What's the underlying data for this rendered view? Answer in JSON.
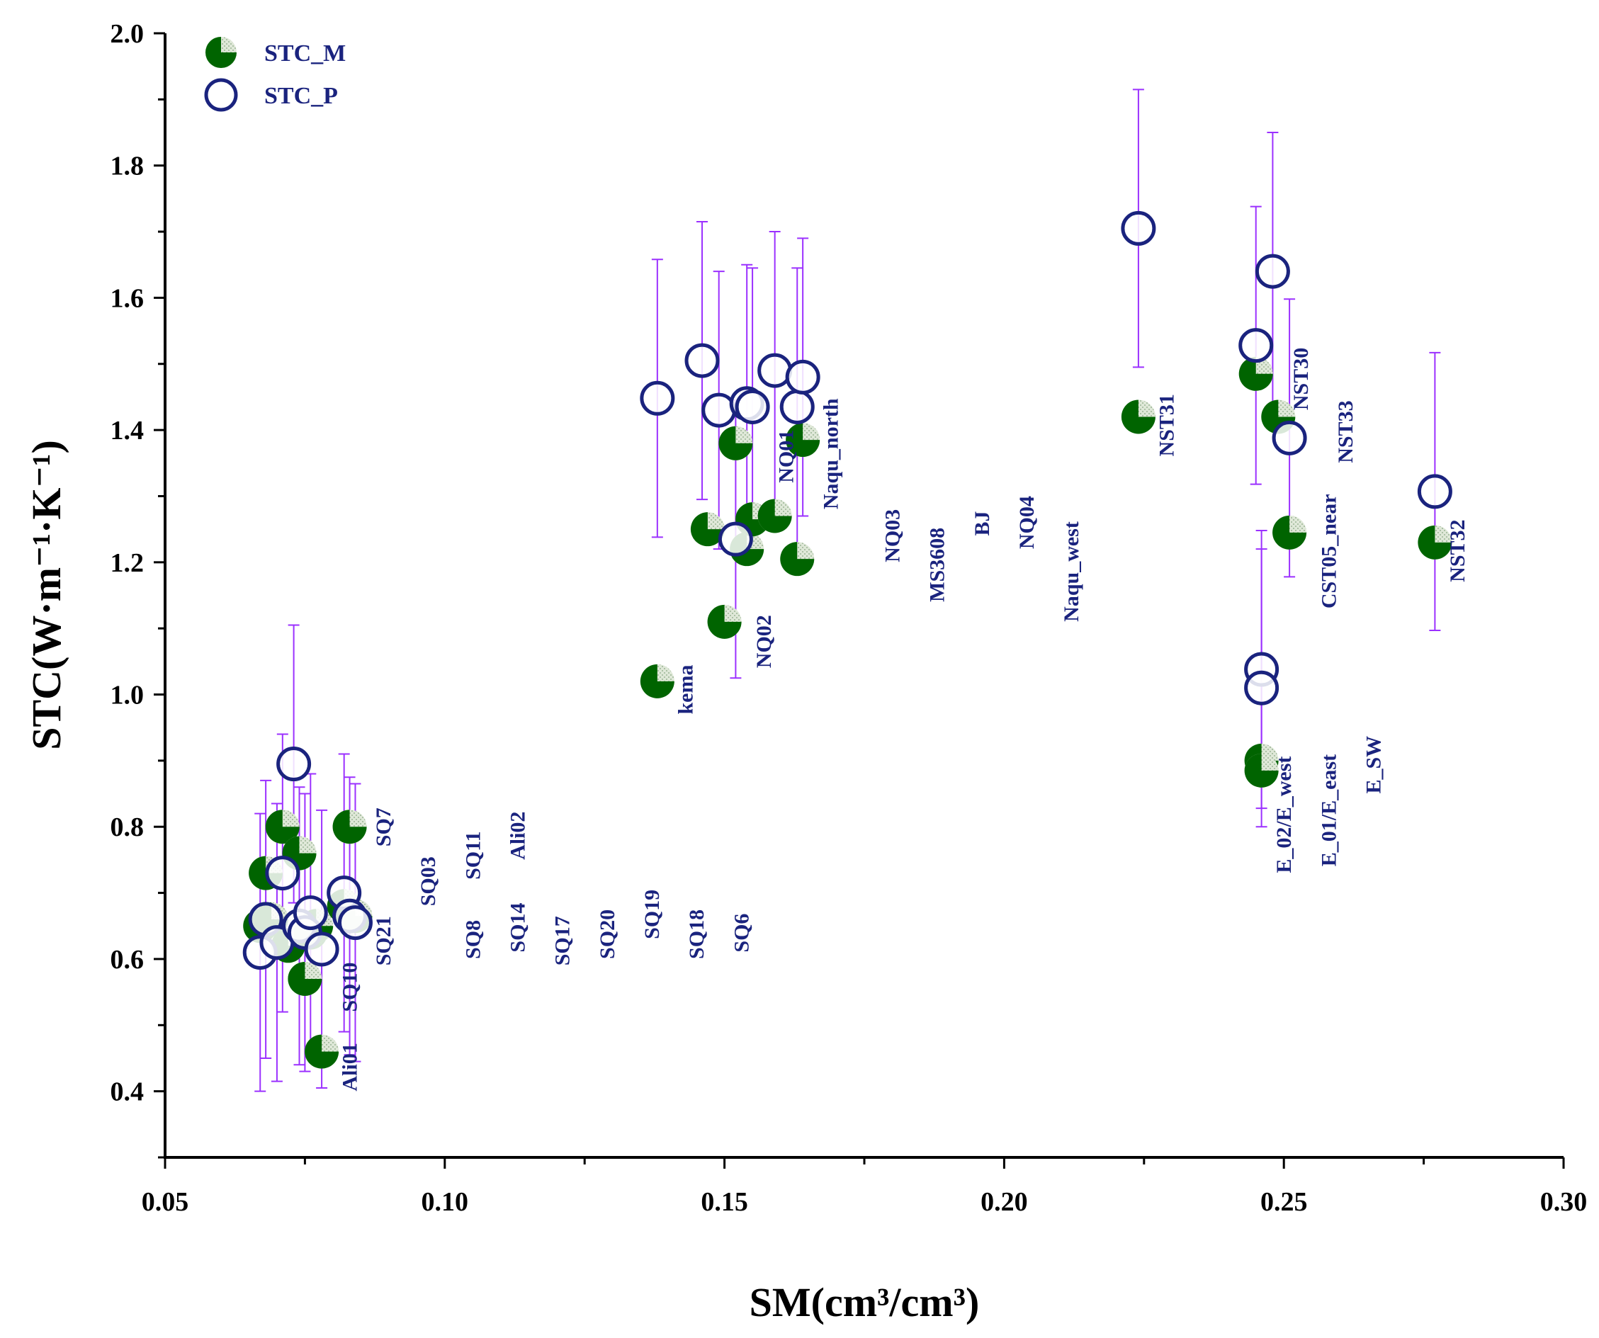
{
  "chart_data": {
    "type": "scatter",
    "xlabel": "SM(cm³/cm³)",
    "ylabel": "STC(W·m⁻¹·K⁻¹)",
    "xlim": [
      0.05,
      0.3
    ],
    "ylim": [
      0.3,
      2.0
    ],
    "x_ticks": [
      "0.05",
      "0.10",
      "0.15",
      "0.20",
      "0.25",
      "0.30"
    ],
    "y_ticks": [
      "0.4",
      "0.6",
      "0.8",
      "1.0",
      "1.2",
      "1.4",
      "1.6",
      "1.8",
      "2.0"
    ],
    "legend_position": "top-left",
    "colors": {
      "stc_m": "#006400",
      "stc_p": "#1a237e",
      "error_bar": "#9b30ff",
      "site_label": "#1a237e"
    },
    "series": [
      {
        "name": "STC_M",
        "marker": "filled-circle",
        "points": [
          {
            "x": 0.067,
            "y": 0.65
          },
          {
            "x": 0.068,
            "y": 0.73
          },
          {
            "x": 0.069,
            "y": 0.66
          },
          {
            "x": 0.071,
            "y": 0.8
          },
          {
            "x": 0.072,
            "y": 0.62
          },
          {
            "x": 0.074,
            "y": 0.76
          },
          {
            "x": 0.075,
            "y": 0.57
          },
          {
            "x": 0.076,
            "y": 0.64
          },
          {
            "x": 0.077,
            "y": 0.65
          },
          {
            "x": 0.078,
            "y": 0.46
          },
          {
            "x": 0.082,
            "y": 0.68
          },
          {
            "x": 0.083,
            "y": 0.8
          },
          {
            "x": 0.084,
            "y": 0.665
          },
          {
            "x": 0.138,
            "y": 1.02
          },
          {
            "x": 0.147,
            "y": 1.25
          },
          {
            "x": 0.15,
            "y": 1.11
          },
          {
            "x": 0.152,
            "y": 1.38
          },
          {
            "x": 0.154,
            "y": 1.22
          },
          {
            "x": 0.155,
            "y": 1.265
          },
          {
            "x": 0.159,
            "y": 1.27
          },
          {
            "x": 0.163,
            "y": 1.205
          },
          {
            "x": 0.164,
            "y": 1.385
          },
          {
            "x": 0.224,
            "y": 1.42
          },
          {
            "x": 0.245,
            "y": 1.485
          },
          {
            "x": 0.246,
            "y": 0.9
          },
          {
            "x": 0.246,
            "y": 0.885
          },
          {
            "x": 0.249,
            "y": 1.42
          },
          {
            "x": 0.251,
            "y": 1.245
          },
          {
            "x": 0.277,
            "y": 1.23
          }
        ]
      },
      {
        "name": "STC_P",
        "marker": "open-circle",
        "points": [
          {
            "x": 0.067,
            "y": 0.61,
            "err": 0.21
          },
          {
            "x": 0.068,
            "y": 0.66,
            "err": 0.21
          },
          {
            "x": 0.07,
            "y": 0.625,
            "err": 0.21
          },
          {
            "x": 0.071,
            "y": 0.73,
            "err": 0.21
          },
          {
            "x": 0.073,
            "y": 0.895,
            "err": 0.21
          },
          {
            "x": 0.074,
            "y": 0.65,
            "err": 0.21
          },
          {
            "x": 0.075,
            "y": 0.64,
            "err": 0.21
          },
          {
            "x": 0.076,
            "y": 0.67,
            "err": 0.21
          },
          {
            "x": 0.078,
            "y": 0.615,
            "err": 0.21
          },
          {
            "x": 0.082,
            "y": 0.7,
            "err": 0.21
          },
          {
            "x": 0.083,
            "y": 0.665,
            "err": 0.21
          },
          {
            "x": 0.084,
            "y": 0.655,
            "err": 0.21
          },
          {
            "x": 0.138,
            "y": 1.448,
            "err": 0.21
          },
          {
            "x": 0.146,
            "y": 1.505,
            "err": 0.21
          },
          {
            "x": 0.149,
            "y": 1.43,
            "err": 0.21
          },
          {
            "x": 0.152,
            "y": 1.235,
            "err": 0.21
          },
          {
            "x": 0.154,
            "y": 1.44,
            "err": 0.21
          },
          {
            "x": 0.155,
            "y": 1.435,
            "err": 0.21
          },
          {
            "x": 0.159,
            "y": 1.49,
            "err": 0.21
          },
          {
            "x": 0.163,
            "y": 1.435,
            "err": 0.21
          },
          {
            "x": 0.164,
            "y": 1.48,
            "err": 0.21
          },
          {
            "x": 0.224,
            "y": 1.705,
            "err": 0.21
          },
          {
            "x": 0.245,
            "y": 1.528,
            "err": 0.21
          },
          {
            "x": 0.246,
            "y": 1.038,
            "err": 0.21
          },
          {
            "x": 0.246,
            "y": 1.01,
            "err": 0.21
          },
          {
            "x": 0.248,
            "y": 1.64,
            "err": 0.21
          },
          {
            "x": 0.251,
            "y": 1.388,
            "err": 0.21
          },
          {
            "x": 0.277,
            "y": 1.307,
            "err": 0.21
          }
        ]
      }
    ],
    "annotations": [
      {
        "text": "SQ7",
        "x": 0.089,
        "y": 0.77,
        "rotated": true
      },
      {
        "text": "SQ21",
        "x": 0.089,
        "y": 0.59,
        "rotated": true
      },
      {
        "text": "SQ10",
        "x": 0.083,
        "y": 0.52,
        "rotated": true
      },
      {
        "text": "Ali01",
        "x": 0.083,
        "y": 0.4,
        "rotated": true
      },
      {
        "text": "SQ03",
        "x": 0.097,
        "y": 0.68,
        "rotated": true
      },
      {
        "text": "SQ11",
        "x": 0.105,
        "y": 0.72,
        "rotated": true
      },
      {
        "text": "Ali02",
        "x": 0.113,
        "y": 0.75,
        "rotated": true
      },
      {
        "text": "SQ8",
        "x": 0.105,
        "y": 0.6,
        "rotated": true
      },
      {
        "text": "SQ14",
        "x": 0.113,
        "y": 0.61,
        "rotated": true
      },
      {
        "text": "SQ17",
        "x": 0.121,
        "y": 0.59,
        "rotated": true
      },
      {
        "text": "SQ20",
        "x": 0.129,
        "y": 0.6,
        "rotated": true
      },
      {
        "text": "SQ19",
        "x": 0.137,
        "y": 0.63,
        "rotated": true
      },
      {
        "text": "SQ18",
        "x": 0.145,
        "y": 0.6,
        "rotated": true
      },
      {
        "text": "SQ6",
        "x": 0.153,
        "y": 0.61,
        "rotated": true
      },
      {
        "text": "kema",
        "x": 0.143,
        "y": 0.97,
        "rotated": true
      },
      {
        "text": "NQ02",
        "x": 0.157,
        "y": 1.04,
        "rotated": true
      },
      {
        "text": "NQ01",
        "x": 0.161,
        "y": 1.32,
        "rotated": true
      },
      {
        "text": "Naqu_north",
        "x": 0.169,
        "y": 1.28,
        "rotated": true
      },
      {
        "text": "NQ03",
        "x": 0.18,
        "y": 1.2,
        "rotated": true
      },
      {
        "text": "MS3608",
        "x": 0.188,
        "y": 1.14,
        "rotated": true
      },
      {
        "text": "BJ",
        "x": 0.196,
        "y": 1.24,
        "rotated": true
      },
      {
        "text": "NQ04",
        "x": 0.204,
        "y": 1.22,
        "rotated": true
      },
      {
        "text": "Naqu_west",
        "x": 0.212,
        "y": 1.11,
        "rotated": true
      },
      {
        "text": "NST31",
        "x": 0.229,
        "y": 1.36,
        "rotated": true
      },
      {
        "text": "NST30",
        "x": 0.253,
        "y": 1.43,
        "rotated": true
      },
      {
        "text": "NST33",
        "x": 0.261,
        "y": 1.35,
        "rotated": true
      },
      {
        "text": "CST05_near",
        "x": 0.258,
        "y": 1.13,
        "rotated": true
      },
      {
        "text": "NST32",
        "x": 0.281,
        "y": 1.17,
        "rotated": true
      },
      {
        "text": "E_02/E_west",
        "x": 0.25,
        "y": 0.73,
        "rotated": true
      },
      {
        "text": "E_01/E_east",
        "x": 0.258,
        "y": 0.74,
        "rotated": true
      },
      {
        "text": "E_SW",
        "x": 0.266,
        "y": 0.85,
        "rotated": true
      }
    ]
  }
}
